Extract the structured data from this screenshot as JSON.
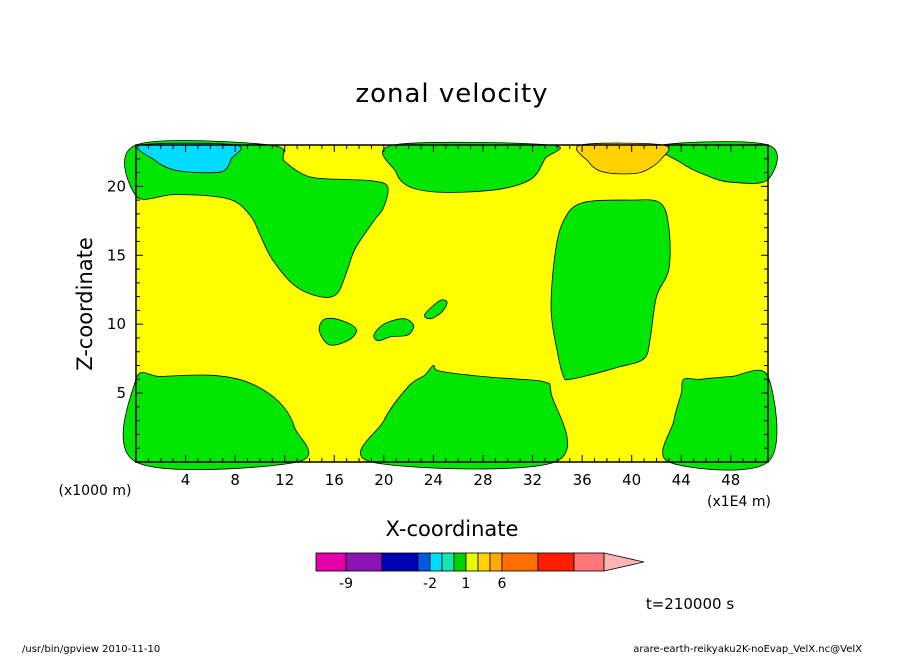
{
  "chart_data": {
    "type": "heatmap",
    "title": "zonal velocity",
    "xlabel": "X-coordinate",
    "ylabel": "Z-coordinate",
    "x_unit": "(x1E4 m)",
    "y_unit": "(x1000 m)",
    "xlim": [
      0,
      51
    ],
    "ylim": [
      0,
      23
    ],
    "x_ticks": [
      4,
      8,
      12,
      16,
      20,
      24,
      28,
      32,
      36,
      40,
      44,
      48
    ],
    "y_ticks": [
      5,
      10,
      15,
      20
    ],
    "grid": false,
    "time_label": "t=210000 s",
    "colorbar": {
      "colors": [
        "#e600ab",
        "#8c14b4",
        "#0000b4",
        "#005ae6",
        "#00dcff",
        "#14e6b4",
        "#00d200",
        "#e6ff00",
        "#ffd200",
        "#ffaa00",
        "#ff6e00",
        "#ff1e00",
        "#ff7878",
        "#ffb4b4"
      ],
      "tick_labels": [
        "-9",
        "-2",
        "1",
        "6"
      ]
    },
    "regions": [
      {
        "name": "background",
        "value_range": [
          0,
          1
        ],
        "color": "#ffff00"
      },
      {
        "name": "lower-left",
        "value_range": [
          -1,
          0
        ],
        "color": "#00e600",
        "outline": [
          [
            0,
            6
          ],
          [
            2,
            6.2
          ],
          [
            6,
            6.3
          ],
          [
            9,
            5.8
          ],
          [
            11.5,
            4.4
          ],
          [
            12.8,
            2.5
          ],
          [
            13,
            0
          ],
          [
            0,
            0
          ]
        ]
      },
      {
        "name": "lower-middle",
        "value_range": [
          -1,
          0
        ],
        "color": "#00e600",
        "outline": [
          [
            19,
            0
          ],
          [
            20,
            3
          ],
          [
            22,
            5.5
          ],
          [
            23.3,
            6.3
          ],
          [
            24,
            7
          ],
          [
            24.5,
            6.6
          ],
          [
            28,
            6.2
          ],
          [
            31,
            6
          ],
          [
            33,
            5.8
          ],
          [
            33.5,
            5
          ],
          [
            33.8,
            0
          ]
        ]
      },
      {
        "name": "lower-right",
        "value_range": [
          -1,
          0
        ],
        "color": "#00e600",
        "outline": [
          [
            43,
            0
          ],
          [
            43.4,
            3
          ],
          [
            44,
            5
          ],
          [
            44.2,
            6
          ],
          [
            45.5,
            6
          ],
          [
            48,
            6.2
          ],
          [
            51,
            6.2
          ],
          [
            51,
            0
          ]
        ]
      },
      {
        "name": "mid-right",
        "value_range": [
          -1,
          0
        ],
        "color": "#00e600",
        "outline": [
          [
            34.5,
            6.2
          ],
          [
            34,
            8
          ],
          [
            33.5,
            11
          ],
          [
            33.8,
            15
          ],
          [
            34.5,
            17.5
          ],
          [
            36,
            18.8
          ],
          [
            40,
            19
          ],
          [
            42.3,
            18.8
          ],
          [
            43,
            17
          ],
          [
            43,
            14
          ],
          [
            42,
            12
          ],
          [
            41.5,
            9
          ],
          [
            41,
            7.5
          ],
          [
            39,
            6.9
          ],
          [
            37,
            6.4
          ],
          [
            35,
            6
          ]
        ]
      },
      {
        "name": "upper",
        "value_range": [
          -1,
          0
        ],
        "color": "#00e600",
        "outline": [
          [
            0,
            23
          ],
          [
            0,
            19.3
          ],
          [
            3,
            19.4
          ],
          [
            6,
            19.3
          ],
          [
            8,
            18.9
          ],
          [
            9.3,
            17.8
          ],
          [
            10,
            16.5
          ],
          [
            11,
            14.7
          ],
          [
            12.8,
            12.8
          ],
          [
            14.8,
            12
          ],
          [
            16.2,
            12.2
          ],
          [
            17,
            13.8
          ],
          [
            17.7,
            15.5
          ],
          [
            19.2,
            17.5
          ],
          [
            20,
            18.5
          ],
          [
            20.3,
            20
          ],
          [
            19,
            20.4
          ],
          [
            17,
            20.5
          ],
          [
            14,
            20.7
          ],
          [
            12,
            21.8
          ],
          [
            10.8,
            23
          ]
        ]
      },
      {
        "name": "upper-mid",
        "value_range": [
          -1,
          0
        ],
        "color": "#00e600",
        "outline": [
          [
            20.8,
            23
          ],
          [
            21,
            21
          ],
          [
            22,
            20
          ],
          [
            24,
            19.6
          ],
          [
            27,
            19.6
          ],
          [
            30,
            19.9
          ],
          [
            32,
            20.6
          ],
          [
            33,
            22
          ],
          [
            33.4,
            23
          ]
        ]
      },
      {
        "name": "upper-right",
        "value_range": [
          -1,
          0
        ],
        "color": "#00e600",
        "outline": [
          [
            42.5,
            23
          ],
          [
            44,
            21.7
          ],
          [
            46,
            20.8
          ],
          [
            48,
            20.3
          ],
          [
            51,
            20.5
          ],
          [
            51,
            23
          ]
        ]
      },
      {
        "name": "blob-16",
        "value_range": [
          -1,
          0
        ],
        "color": "#00e600",
        "outline": [
          [
            14.8,
            9.5
          ],
          [
            15.1,
            10.3
          ],
          [
            16,
            10.4
          ],
          [
            17.3,
            10
          ],
          [
            17.8,
            9.5
          ],
          [
            17.1,
            8.8
          ],
          [
            15.6,
            8.5
          ]
        ]
      },
      {
        "name": "blob-20",
        "value_range": [
          -1,
          0
        ],
        "color": "#00e600",
        "outline": [
          [
            19.2,
            9.2
          ],
          [
            20,
            10
          ],
          [
            21.6,
            10.4
          ],
          [
            22.4,
            9.9
          ],
          [
            21.9,
            9.2
          ],
          [
            20.6,
            9.1
          ],
          [
            19.6,
            8.8
          ]
        ]
      },
      {
        "name": "blob-24",
        "value_range": [
          -1,
          0
        ],
        "color": "#00e600",
        "outline": [
          [
            23.3,
            10.7
          ],
          [
            24.5,
            11.7
          ],
          [
            25.1,
            11.6
          ],
          [
            24.7,
            10.9
          ],
          [
            23.8,
            10.4
          ]
        ]
      },
      {
        "name": "cyan-top-left",
        "value_range": [
          -6,
          -2
        ],
        "color": "#00dcff",
        "outline": [
          [
            0.5,
            23
          ],
          [
            1.5,
            21.9
          ],
          [
            3,
            21.2
          ],
          [
            5,
            21
          ],
          [
            7,
            21.1
          ],
          [
            7.7,
            22
          ],
          [
            8,
            23
          ]
        ]
      },
      {
        "name": "orange-top-right",
        "value_range": [
          2,
          4
        ],
        "color": "#ffd200",
        "outline": [
          [
            35.9,
            23
          ],
          [
            36.5,
            21.8
          ],
          [
            37.5,
            21.1
          ],
          [
            39.5,
            20.9
          ],
          [
            41,
            21.1
          ],
          [
            42.4,
            22
          ],
          [
            42.5,
            23
          ]
        ]
      }
    ]
  },
  "footer": {
    "left": "/usr/bin/gpview   2010-11-10",
    "right": "arare-earth-reikyaku2K-noEvap_VelX.nc@VelX"
  }
}
